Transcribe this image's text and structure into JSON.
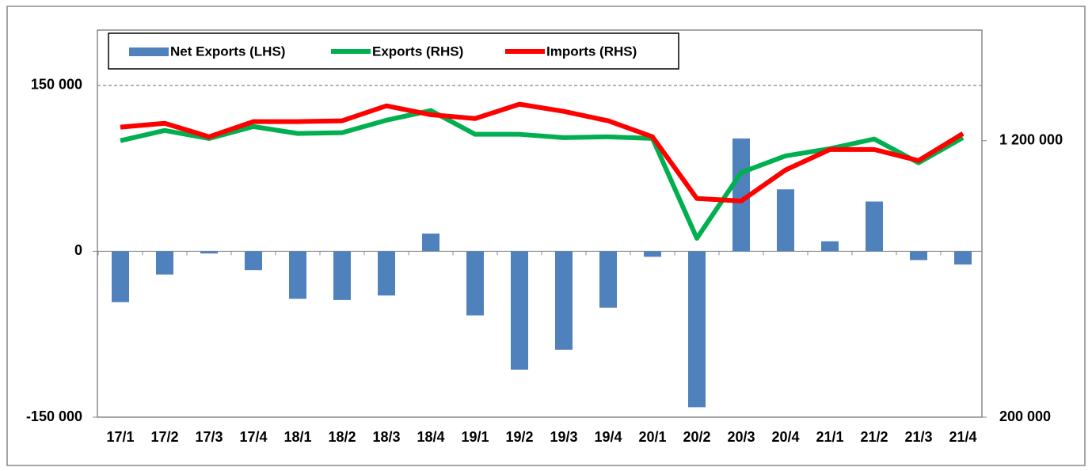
{
  "chart_data": {
    "type": "bar_line",
    "categories": [
      "17/1",
      "17/2",
      "17/3",
      "17/4",
      "18/1",
      "18/2",
      "18/3",
      "18/4",
      "19/1",
      "19/2",
      "19/3",
      "19/4",
      "20/1",
      "20/2",
      "20/3",
      "20/4",
      "21/1",
      "21/2",
      "21/3",
      "21/4"
    ],
    "series": [
      {
        "name": "Net Exports (LHS)",
        "type": "bar",
        "color": "#4f81bd",
        "values": [
          -46000,
          -21000,
          -2000,
          -17000,
          -43000,
          -44000,
          -40000,
          16000,
          -58000,
          -107000,
          -89000,
          -51000,
          -5000,
          -141000,
          102000,
          56000,
          9000,
          45000,
          -8000,
          -12000
        ]
      },
      {
        "name": "Exports (RHS)",
        "type": "line",
        "axis": "y2",
        "color": "#00b050",
        "values": [
          1200000,
          1237000,
          1208000,
          1251000,
          1226000,
          1229000,
          1274000,
          1309000,
          1223000,
          1223000,
          1211000,
          1214000,
          1208000,
          847000,
          1085000,
          1145000,
          1171000,
          1206000,
          1120000,
          1211000
        ]
      },
      {
        "name": "Imports (RHS)",
        "type": "line",
        "axis": "y2",
        "color": "#ff0000",
        "values": [
          1249000,
          1263000,
          1214000,
          1269000,
          1269000,
          1272000,
          1326000,
          1294000,
          1280000,
          1332000,
          1306000,
          1272000,
          1214000,
          991000,
          982000,
          1094000,
          1168000,
          1168000,
          1128000,
          1226000
        ]
      }
    ],
    "ylim": [
      -150000,
      200000
    ],
    "yticks": [
      {
        "value": -150000,
        "label": "-150 000"
      },
      0,
      {
        "value": 150000,
        "label": "150 000"
      }
    ],
    "y2lim": [
      200000,
      1600000
    ],
    "y2ticks": [
      {
        "value": 200000,
        "label": "200 000"
      },
      {
        "value": 1200000,
        "label": "1 200 000"
      }
    ],
    "legend": "top-left"
  }
}
